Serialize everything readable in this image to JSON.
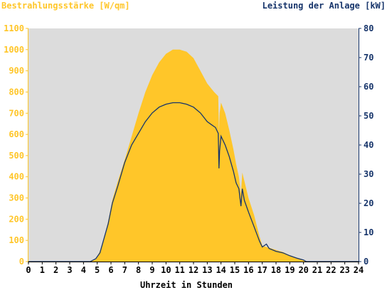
{
  "chart_data": {
    "type": "area",
    "title": "",
    "ylabel_left": "Bestrahlungsstärke [W/qm]",
    "ylabel_right": "Leistung der Anlage [kW]",
    "xlabel": "Uhrzeit in Stunden",
    "xlim": [
      0,
      24
    ],
    "ylim_left": [
      0,
      1100
    ],
    "ylim_right": [
      0,
      80
    ],
    "x_ticks": [
      "0",
      "1",
      "2",
      "3",
      "4",
      "5",
      "6",
      "7",
      "8",
      "9",
      "10",
      "11",
      "12",
      "13",
      "14",
      "15",
      "16",
      "17",
      "18",
      "19",
      "20",
      "21",
      "22",
      "23",
      "24"
    ],
    "y_left_ticks": [
      "0",
      "100",
      "200",
      "300",
      "400",
      "500",
      "600",
      "700",
      "800",
      "900",
      "1000",
      "1100"
    ],
    "y_right_ticks": [
      "0",
      "10",
      "20",
      "30",
      "40",
      "50",
      "60",
      "70",
      "80"
    ],
    "grid": false,
    "colors": {
      "plot_bg": "#dcdcdc",
      "area": "#ffc629",
      "line": "#17356b",
      "left_axis": "#ffc629",
      "right_axis": "#17356b"
    },
    "series": [
      {
        "type": "area",
        "axis": "left",
        "x": [
          0,
          4.5,
          4.9,
          5.2,
          5.5,
          5.8,
          6.1,
          6.5,
          7,
          7.5,
          8,
          8.5,
          9,
          9.5,
          10,
          10.5,
          11,
          11.5,
          12,
          12.5,
          13,
          13.5,
          13.8,
          13.85,
          13.9,
          14,
          14.3,
          14.6,
          14.9,
          15.1,
          15.3,
          15.45,
          15.55,
          15.7,
          16,
          16.4,
          16.8,
          17,
          17.5,
          18,
          18.5,
          19,
          19.5,
          20,
          20.2,
          24
        ],
        "y": [
          0,
          0,
          10,
          50,
          110,
          190,
          290,
          380,
          480,
          590,
          700,
          800,
          880,
          940,
          980,
          1000,
          1000,
          990,
          960,
          900,
          840,
          800,
          780,
          610,
          700,
          750,
          700,
          620,
          530,
          460,
          400,
          320,
          420,
          380,
          300,
          220,
          120,
          75,
          65,
          55,
          45,
          30,
          18,
          8,
          0,
          0
        ]
      },
      {
        "type": "line",
        "axis": "right",
        "x": [
          0,
          4.5,
          4.9,
          5.2,
          5.5,
          5.8,
          6.1,
          6.5,
          7,
          7.5,
          8,
          8.5,
          9,
          9.5,
          10,
          10.5,
          11,
          11.5,
          12,
          12.5,
          13,
          13.3,
          13.6,
          13.8,
          13.85,
          13.9,
          14,
          14.3,
          14.6,
          14.9,
          15.1,
          15.3,
          15.45,
          15.55,
          15.7,
          16,
          16.4,
          16.8,
          17,
          17.3,
          17.5,
          18,
          18.5,
          19,
          19.5,
          20,
          20.2,
          24
        ],
        "y": [
          0,
          0,
          1,
          3,
          8,
          13,
          20,
          26,
          34,
          40,
          44,
          48,
          51,
          53,
          54,
          54.5,
          54.5,
          54,
          53,
          51,
          48,
          47,
          46,
          44,
          32,
          38,
          43,
          40,
          36,
          31,
          27,
          25,
          19,
          25,
          21,
          17,
          12,
          7,
          5,
          6,
          4.5,
          3.5,
          3,
          2,
          1.2,
          0.5,
          0,
          0
        ]
      }
    ]
  }
}
